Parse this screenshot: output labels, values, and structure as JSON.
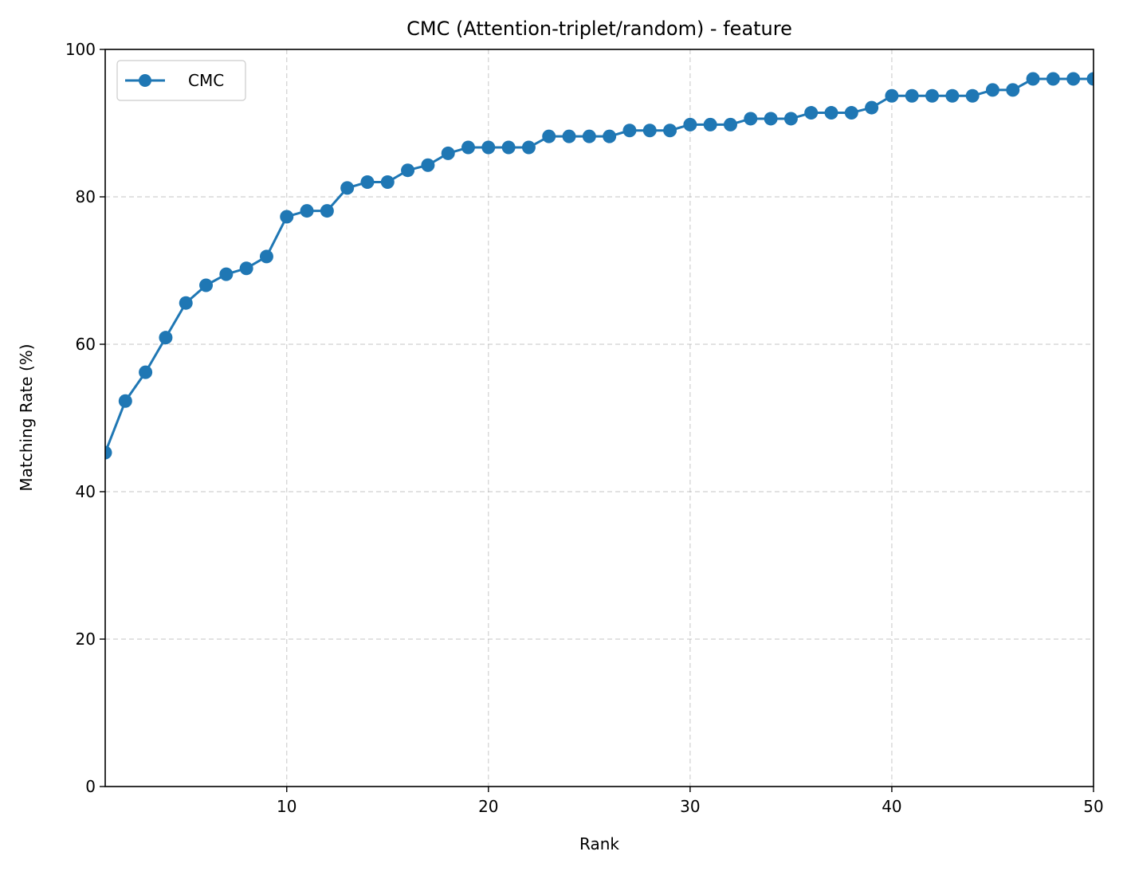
{
  "chart_data": {
    "type": "line",
    "title": "CMC (Attention-triplet/random) - feature",
    "xlabel": "Rank",
    "ylabel": "Matching Rate (%)",
    "xlim": [
      1,
      50
    ],
    "ylim": [
      0,
      100
    ],
    "xticks": [
      10,
      20,
      30,
      40,
      50
    ],
    "yticks": [
      0,
      20,
      40,
      60,
      80,
      100
    ],
    "grid": true,
    "legend_position": "top-left",
    "series": [
      {
        "name": "CMC",
        "color": "#1f77b4",
        "marker": "circle",
        "x": [
          1,
          2,
          3,
          4,
          5,
          6,
          7,
          8,
          9,
          10,
          11,
          12,
          13,
          14,
          15,
          16,
          17,
          18,
          19,
          20,
          21,
          22,
          23,
          24,
          25,
          26,
          27,
          28,
          29,
          30,
          31,
          32,
          33,
          34,
          35,
          36,
          37,
          38,
          39,
          40,
          41,
          42,
          43,
          44,
          45,
          46,
          47,
          48,
          49,
          50
        ],
        "values": [
          45.3,
          52.3,
          56.2,
          60.9,
          65.6,
          68.0,
          69.5,
          70.3,
          71.9,
          77.3,
          78.1,
          78.1,
          81.2,
          82.0,
          82.0,
          83.6,
          84.3,
          85.9,
          86.7,
          86.7,
          86.7,
          86.7,
          88.2,
          88.2,
          88.2,
          88.2,
          89.0,
          89.0,
          89.0,
          89.8,
          89.8,
          89.8,
          90.6,
          90.6,
          90.6,
          91.4,
          91.4,
          91.4,
          92.1,
          93.7,
          93.7,
          93.7,
          93.7,
          93.7,
          94.5,
          94.5,
          96.0,
          96.0,
          96.0,
          96.0
        ]
      }
    ]
  }
}
